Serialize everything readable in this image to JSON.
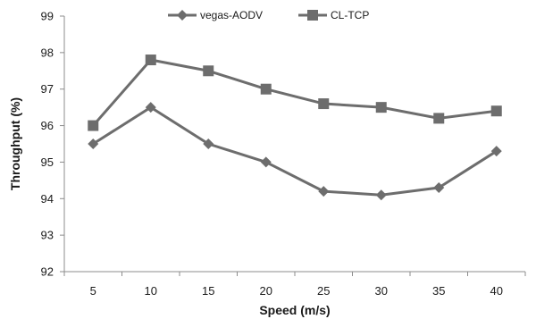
{
  "chart_data": {
    "type": "line",
    "title": "",
    "xlabel": "Speed (m/s)",
    "ylabel": "Throughput (%)",
    "categories": [
      "5",
      "10",
      "15",
      "20",
      "25",
      "30",
      "35",
      "40"
    ],
    "ylim": [
      92,
      99
    ],
    "yticks": [
      "92",
      "93",
      "94",
      "95",
      "96",
      "97",
      "98",
      "99"
    ],
    "grid": false,
    "legend_position": "top",
    "series": [
      {
        "name": "vegas-AODV",
        "marker": "diamond",
        "color": "#6d6d6d",
        "values": [
          95.5,
          96.5,
          95.5,
          95.0,
          94.2,
          94.1,
          94.3,
          95.3
        ]
      },
      {
        "name": "CL-TCP",
        "marker": "square",
        "color": "#6d6d6d",
        "values": [
          96.0,
          97.8,
          97.5,
          97.0,
          96.6,
          96.5,
          96.2,
          96.4
        ]
      }
    ]
  }
}
